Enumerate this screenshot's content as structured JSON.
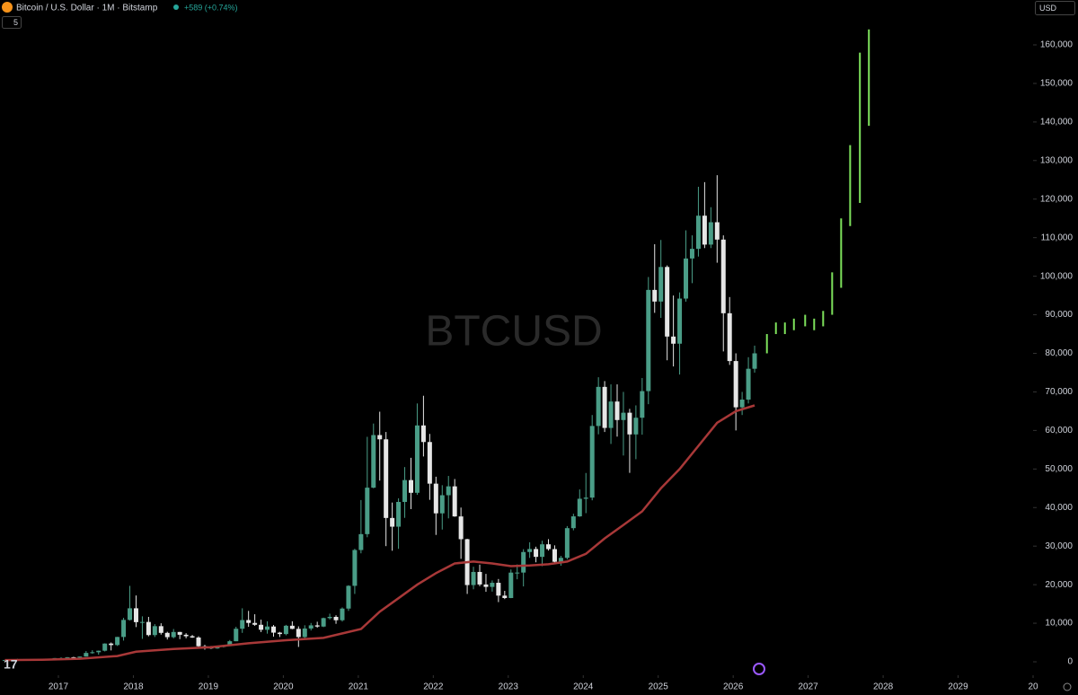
{
  "chart_data": {
    "type": "candlestick",
    "title": "Bitcoin / U.S. Dollar · 1M · Bitstamp",
    "change": "+589 (+0.74%)",
    "indicator_count": "5",
    "currency": "USD",
    "watermark": "BTCUSD",
    "up_color": "#4a9d87",
    "down_color": "#e6e6e6",
    "ma_color": "#a83838",
    "projection_color": "#7ee25c",
    "xlim": [
      2016.221,
      2030
    ],
    "xticks": [
      2017,
      2018,
      2019,
      2020,
      2021,
      2022,
      2023,
      2024,
      2025,
      2026,
      2027,
      2028,
      2029,
      {
        "value": 2030,
        "label": "20"
      }
    ],
    "ylim": [
      -3490,
      171640
    ],
    "yticks": [
      0,
      {
        "value": 10000,
        "label": "10,000"
      },
      {
        "value": 20000,
        "label": "20,000"
      },
      {
        "value": 30000,
        "label": "30,000"
      },
      {
        "value": 40000,
        "label": "40,000"
      },
      {
        "value": 50000,
        "label": "50,000"
      },
      {
        "value": 60000,
        "label": "60,000"
      },
      {
        "value": 70000,
        "label": "70,000"
      },
      {
        "value": 80000,
        "label": "80,000"
      },
      {
        "value": 90000,
        "label": "90,000"
      },
      {
        "value": 100000,
        "label": "100,000"
      },
      {
        "value": 110000,
        "label": "110,000"
      },
      {
        "value": 120000,
        "label": "120,000"
      },
      {
        "value": 130000,
        "label": "130,000"
      },
      {
        "value": 140000,
        "label": "140,000"
      },
      {
        "value": 150000,
        "label": "150,000"
      },
      {
        "value": 160000,
        "label": "160,000"
      }
    ],
    "x": [
      "2016-04",
      "2016-05",
      "2016-06",
      "2016-07",
      "2016-08",
      "2016-09",
      "2016-10",
      "2016-11",
      "2016-12",
      "2017-01",
      "2017-02",
      "2017-03",
      "2017-04",
      "2017-05",
      "2017-06",
      "2017-07",
      "2017-08",
      "2017-09",
      "2017-10",
      "2017-11",
      "2017-12",
      "2018-01",
      "2018-02",
      "2018-03",
      "2018-04",
      "2018-05",
      "2018-06",
      "2018-07",
      "2018-08",
      "2018-09",
      "2018-10",
      "2018-11",
      "2018-12",
      "2019-01",
      "2019-02",
      "2019-03",
      "2019-04",
      "2019-05",
      "2019-06",
      "2019-07",
      "2019-08",
      "2019-09",
      "2019-10",
      "2019-11",
      "2019-12",
      "2020-01",
      "2020-02",
      "2020-03",
      "2020-04",
      "2020-05",
      "2020-06",
      "2020-07",
      "2020-08",
      "2020-09",
      "2020-10",
      "2020-11",
      "2020-12",
      "2021-01",
      "2021-02",
      "2021-03",
      "2021-04",
      "2021-05",
      "2021-06",
      "2021-07",
      "2021-08",
      "2021-09",
      "2021-10",
      "2021-11",
      "2021-12",
      "2022-01",
      "2022-02",
      "2022-03",
      "2022-04",
      "2022-05",
      "2022-06",
      "2022-07",
      "2022-08",
      "2022-09",
      "2022-10",
      "2022-11",
      "2022-12",
      "2023-01",
      "2023-02",
      "2023-03",
      "2023-04",
      "2023-05",
      "2023-06",
      "2023-07",
      "2023-08",
      "2023-09",
      "2023-10",
      "2023-11",
      "2023-12",
      "2024-01",
      "2024-02",
      "2024-03",
      "2024-04",
      "2024-05",
      "2024-06",
      "2024-07",
      "2024-08",
      "2024-09",
      "2024-10",
      "2024-11",
      "2024-12",
      "2025-01",
      "2025-02",
      "2025-03",
      "2025-04",
      "2025-05",
      "2025-06",
      "2025-07",
      "2025-08",
      "2025-09",
      "2025-10",
      "2025-11",
      "2025-12",
      "2026-01",
      "2026-02",
      "2026-03",
      "2026-04"
    ],
    "ohlc": [
      [
        416,
        468,
        414,
        448
      ],
      [
        448,
        550,
        435,
        531
      ],
      [
        531,
        780,
        515,
        673
      ],
      [
        673,
        704,
        605,
        624
      ],
      [
        624,
        628,
        470,
        573
      ],
      [
        573,
        628,
        570,
        609
      ],
      [
        609,
        718,
        604,
        700
      ],
      [
        700,
        757,
        680,
        742
      ],
      [
        742,
        975,
        740,
        963
      ],
      [
        963,
        1150,
        750,
        970
      ],
      [
        970,
        1210,
        915,
        1190
      ],
      [
        1190,
        1290,
        890,
        1080
      ],
      [
        1080,
        1350,
        1060,
        1350
      ],
      [
        1350,
        2790,
        1350,
        2300
      ],
      [
        2300,
        3000,
        2100,
        2480
      ],
      [
        2480,
        2920,
        1840,
        2870
      ],
      [
        2870,
        4800,
        2680,
        4730
      ],
      [
        4730,
        5000,
        2950,
        4340
      ],
      [
        4340,
        6470,
        4110,
        6440
      ],
      [
        6440,
        11400,
        5500,
        10860
      ],
      [
        10860,
        19700,
        10700,
        13880
      ],
      [
        13880,
        17200,
        9000,
        10280
      ],
      [
        10280,
        11790,
        5950,
        10330
      ],
      [
        10330,
        11650,
        6600,
        6930
      ],
      [
        6930,
        9760,
        6430,
        9240
      ],
      [
        9240,
        9990,
        7050,
        7500
      ],
      [
        7500,
        7780,
        5780,
        6390
      ],
      [
        6390,
        8500,
        6070,
        7730
      ],
      [
        7730,
        7760,
        5880,
        7010
      ],
      [
        7010,
        7410,
        6100,
        6630
      ],
      [
        6630,
        6960,
        6200,
        6300
      ],
      [
        6300,
        6620,
        3650,
        4040
      ],
      [
        4040,
        4400,
        3150,
        3740
      ],
      [
        3740,
        4100,
        3350,
        3460
      ],
      [
        3460,
        4200,
        3380,
        3830
      ],
      [
        3830,
        4120,
        3700,
        4100
      ],
      [
        4100,
        5650,
        4070,
        5330
      ],
      [
        5330,
        9080,
        5330,
        8570
      ],
      [
        8570,
        13880,
        7500,
        10820
      ],
      [
        10820,
        13200,
        9070,
        10080
      ],
      [
        10080,
        12330,
        9330,
        9600
      ],
      [
        9600,
        10930,
        7700,
        8300
      ],
      [
        8300,
        10500,
        7300,
        9150
      ],
      [
        9150,
        9530,
        6520,
        7560
      ],
      [
        7560,
        7750,
        6430,
        7190
      ],
      [
        7190,
        9580,
        6870,
        9350
      ],
      [
        9350,
        10500,
        8450,
        8540
      ],
      [
        8540,
        9190,
        3850,
        6420
      ],
      [
        6420,
        9470,
        6150,
        8630
      ],
      [
        8630,
        10070,
        8120,
        9450
      ],
      [
        9450,
        10390,
        8830,
        9140
      ],
      [
        9140,
        11450,
        8990,
        11330
      ],
      [
        11330,
        12480,
        10970,
        11650
      ],
      [
        11650,
        12070,
        9850,
        10780
      ],
      [
        10780,
        14100,
        10430,
        13800
      ],
      [
        13800,
        19860,
        13200,
        19700
      ],
      [
        19700,
        29300,
        17600,
        28990
      ],
      [
        28990,
        41950,
        28130,
        33110
      ],
      [
        33110,
        58350,
        32300,
        45160
      ],
      [
        45160,
        61790,
        45000,
        58800
      ],
      [
        58800,
        64860,
        47000,
        57700
      ],
      [
        57700,
        59600,
        30000,
        37300
      ],
      [
        37300,
        41300,
        28800,
        35040
      ],
      [
        35040,
        42400,
        29300,
        41460
      ],
      [
        41460,
        50500,
        37330,
        47130
      ],
      [
        47130,
        52900,
        39600,
        43830
      ],
      [
        43830,
        67000,
        43300,
        61300
      ],
      [
        61300,
        69000,
        53250,
        57000
      ],
      [
        57000,
        59100,
        42000,
        46200
      ],
      [
        46200,
        48000,
        32900,
        38500
      ],
      [
        38500,
        45800,
        34300,
        43200
      ],
      [
        43200,
        48200,
        37200,
        45500
      ],
      [
        45500,
        47400,
        37600,
        37700
      ],
      [
        37700,
        40000,
        26700,
        31800
      ],
      [
        31800,
        31900,
        17600,
        19900
      ],
      [
        19900,
        24650,
        18800,
        23300
      ],
      [
        23300,
        25200,
        19600,
        20050
      ],
      [
        20050,
        22800,
        18150,
        19420
      ],
      [
        19420,
        21100,
        18200,
        20490
      ],
      [
        20490,
        21470,
        15480,
        17160
      ],
      [
        17160,
        18400,
        16260,
        16540
      ],
      [
        16540,
        23950,
        16500,
        23130
      ],
      [
        23130,
        25250,
        21400,
        23140
      ],
      [
        23140,
        29200,
        19550,
        28470
      ],
      [
        28470,
        31000,
        26940,
        29250
      ],
      [
        29250,
        29850,
        25800,
        27210
      ],
      [
        27210,
        31400,
        24800,
        30470
      ],
      [
        30470,
        31800,
        28850,
        29230
      ],
      [
        29230,
        30200,
        25400,
        25930
      ],
      [
        25930,
        27480,
        24920,
        26960
      ],
      [
        26960,
        35200,
        26560,
        34660
      ],
      [
        34660,
        38400,
        34100,
        37720
      ],
      [
        37720,
        44700,
        37600,
        42280
      ],
      [
        42280,
        48970,
        38550,
        42580
      ],
      [
        42580,
        64000,
        41880,
        61160
      ],
      [
        61160,
        73800,
        59000,
        71300
      ],
      [
        71300,
        72800,
        59600,
        60650
      ],
      [
        60650,
        71950,
        56500,
        67500
      ],
      [
        67500,
        71950,
        58400,
        62700
      ],
      [
        62700,
        70000,
        53500,
        64600
      ],
      [
        64600,
        65600,
        49000,
        58970
      ],
      [
        58970,
        66500,
        52550,
        63300
      ],
      [
        63300,
        73600,
        58900,
        70200
      ],
      [
        70200,
        99800,
        66800,
        96450
      ],
      [
        96450,
        108300,
        90500,
        93430
      ],
      [
        93430,
        109400,
        89200,
        102400
      ],
      [
        102400,
        102800,
        78200,
        84350
      ],
      [
        84350,
        95000,
        76600,
        82500
      ],
      [
        82500,
        95800,
        74500,
        94200
      ],
      [
        94200,
        111900,
        93400,
        104600
      ],
      [
        104600,
        110600,
        98200,
        107100
      ],
      [
        107100,
        123200,
        105100,
        115700
      ],
      [
        115700,
        124400,
        107300,
        108200
      ],
      [
        108200,
        117900,
        107300,
        114000
      ],
      [
        114000,
        126200,
        103500,
        109500
      ],
      [
        109500,
        110600,
        80500,
        90400
      ],
      [
        90400,
        94600,
        77000,
        78000
      ],
      [
        78000,
        80000,
        60000,
        66000
      ],
      [
        66000,
        70000,
        64000,
        68000
      ],
      [
        68000,
        79000,
        67000,
        76000
      ],
      [
        76000,
        82000,
        75000,
        80000
      ]
    ],
    "ma": {
      "x": [
        "2016-04",
        "2016-10",
        "2017-04",
        "2017-10",
        "2018-01",
        "2018-07",
        "2019-01",
        "2019-07",
        "2020-01",
        "2020-07",
        "2021-01",
        "2021-04",
        "2021-07",
        "2021-10",
        "2022-01",
        "2022-04",
        "2022-07",
        "2022-10",
        "2023-01",
        "2023-04",
        "2023-07",
        "2023-10",
        "2024-01",
        "2024-04",
        "2024-07",
        "2024-10",
        "2025-01",
        "2025-04",
        "2025-07",
        "2025-10",
        "2026-01",
        "2026-04"
      ],
      "values": [
        450,
        550,
        800,
        1500,
        2600,
        3300,
        3800,
        4800,
        5600,
        6200,
        8500,
        13000,
        16500,
        20000,
        23000,
        25500,
        26000,
        25500,
        24800,
        25000,
        25300,
        26000,
        28000,
        32000,
        35500,
        39000,
        45000,
        50000,
        56000,
        62000,
        65000,
        66500
      ]
    },
    "projection": {
      "x": [
        2026.45,
        2026.57,
        2026.69,
        2026.81,
        2026.96,
        2027.08,
        2027.2,
        2027.32,
        2027.44,
        2027.56,
        2027.69,
        2027.81
      ],
      "low": [
        80000,
        85000,
        85000,
        86000,
        87000,
        86000,
        87000,
        90000,
        97000,
        113000,
        119000,
        139000
      ],
      "high": [
        85000,
        88000,
        88000,
        89000,
        90000,
        89000,
        91000,
        101000,
        115000,
        134000,
        158000,
        164000
      ]
    }
  }
}
